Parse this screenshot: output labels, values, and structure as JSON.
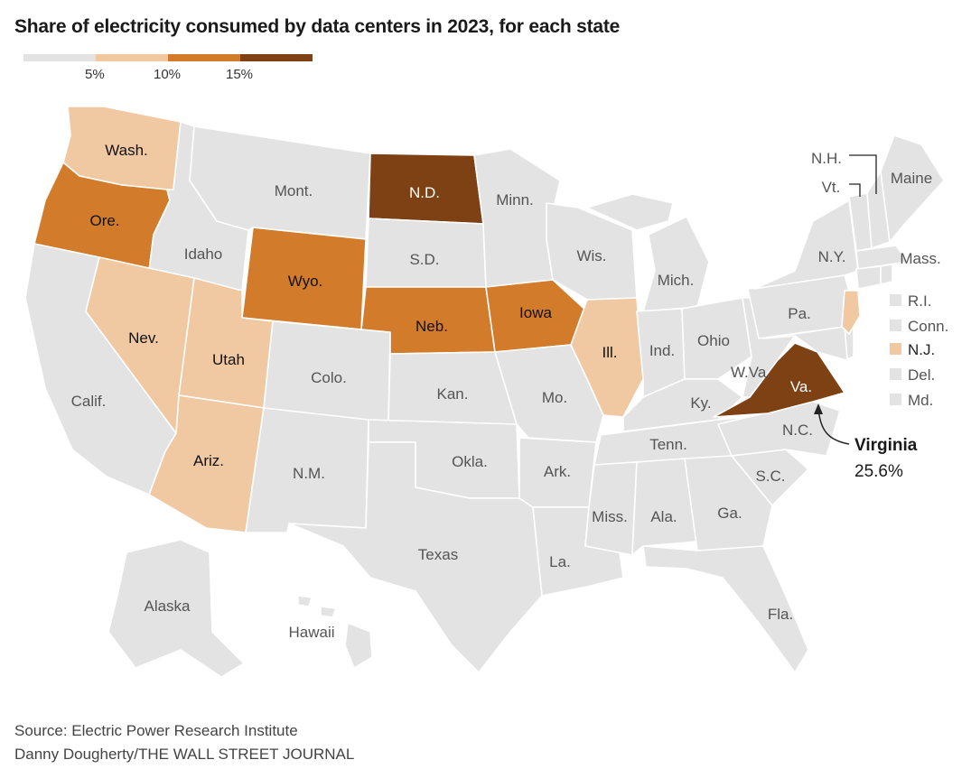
{
  "title": "Share of electricity consumed by data centers in 2023, for each state",
  "colors": {
    "bin_0_5": "#e3e3e3",
    "bin_5_10": "#f0c9a3",
    "bin_10_15": "#d27b2b",
    "bin_15_plus": "#7e4114",
    "border": "#ffffff"
  },
  "legend": {
    "ticks": [
      "5%",
      "10%",
      "15%"
    ]
  },
  "states": {
    "wa": "Wash.",
    "or": "Ore.",
    "ca": "Calif.",
    "id": "Idaho",
    "nv": "Nev.",
    "mt": "Mont.",
    "wy": "Wyo.",
    "ut": "Utah",
    "az": "Ariz.",
    "co": "Colo.",
    "nm": "N.M.",
    "nd": "N.D.",
    "sd": "S.D.",
    "ne": "Neb.",
    "ks": "Kan.",
    "ok": "Okla.",
    "tx": "Texas",
    "mn": "Minn.",
    "ia": "Iowa",
    "mo": "Mo.",
    "ar": "Ark.",
    "la": "La.",
    "wi": "Wis.",
    "il": "Ill.",
    "mi": "Mich.",
    "in": "Ind.",
    "oh": "Ohio",
    "ky": "Ky.",
    "tn": "Tenn.",
    "ms": "Miss.",
    "al": "Ala.",
    "ga": "Ga.",
    "fl": "Fla.",
    "sc": "S.C.",
    "nc": "N.C.",
    "va": "Va.",
    "wv": "W.Va.",
    "pa": "Pa.",
    "ny": "N.Y.",
    "vt": "Vt.",
    "nh": "N.H.",
    "me": "Maine",
    "ma": "Mass.",
    "ri": "R.I.",
    "ct": "Conn.",
    "nj": "N.J.",
    "de": "Del.",
    "md": "Md.",
    "ak": "Alaska",
    "hi": "Hawaii"
  },
  "annotation": {
    "name": "Virginia",
    "value": "25.6%"
  },
  "source": "Source: Electric Power Research Institute",
  "credit": "Danny Dougherty/THE WALL STREET JOURNAL"
}
